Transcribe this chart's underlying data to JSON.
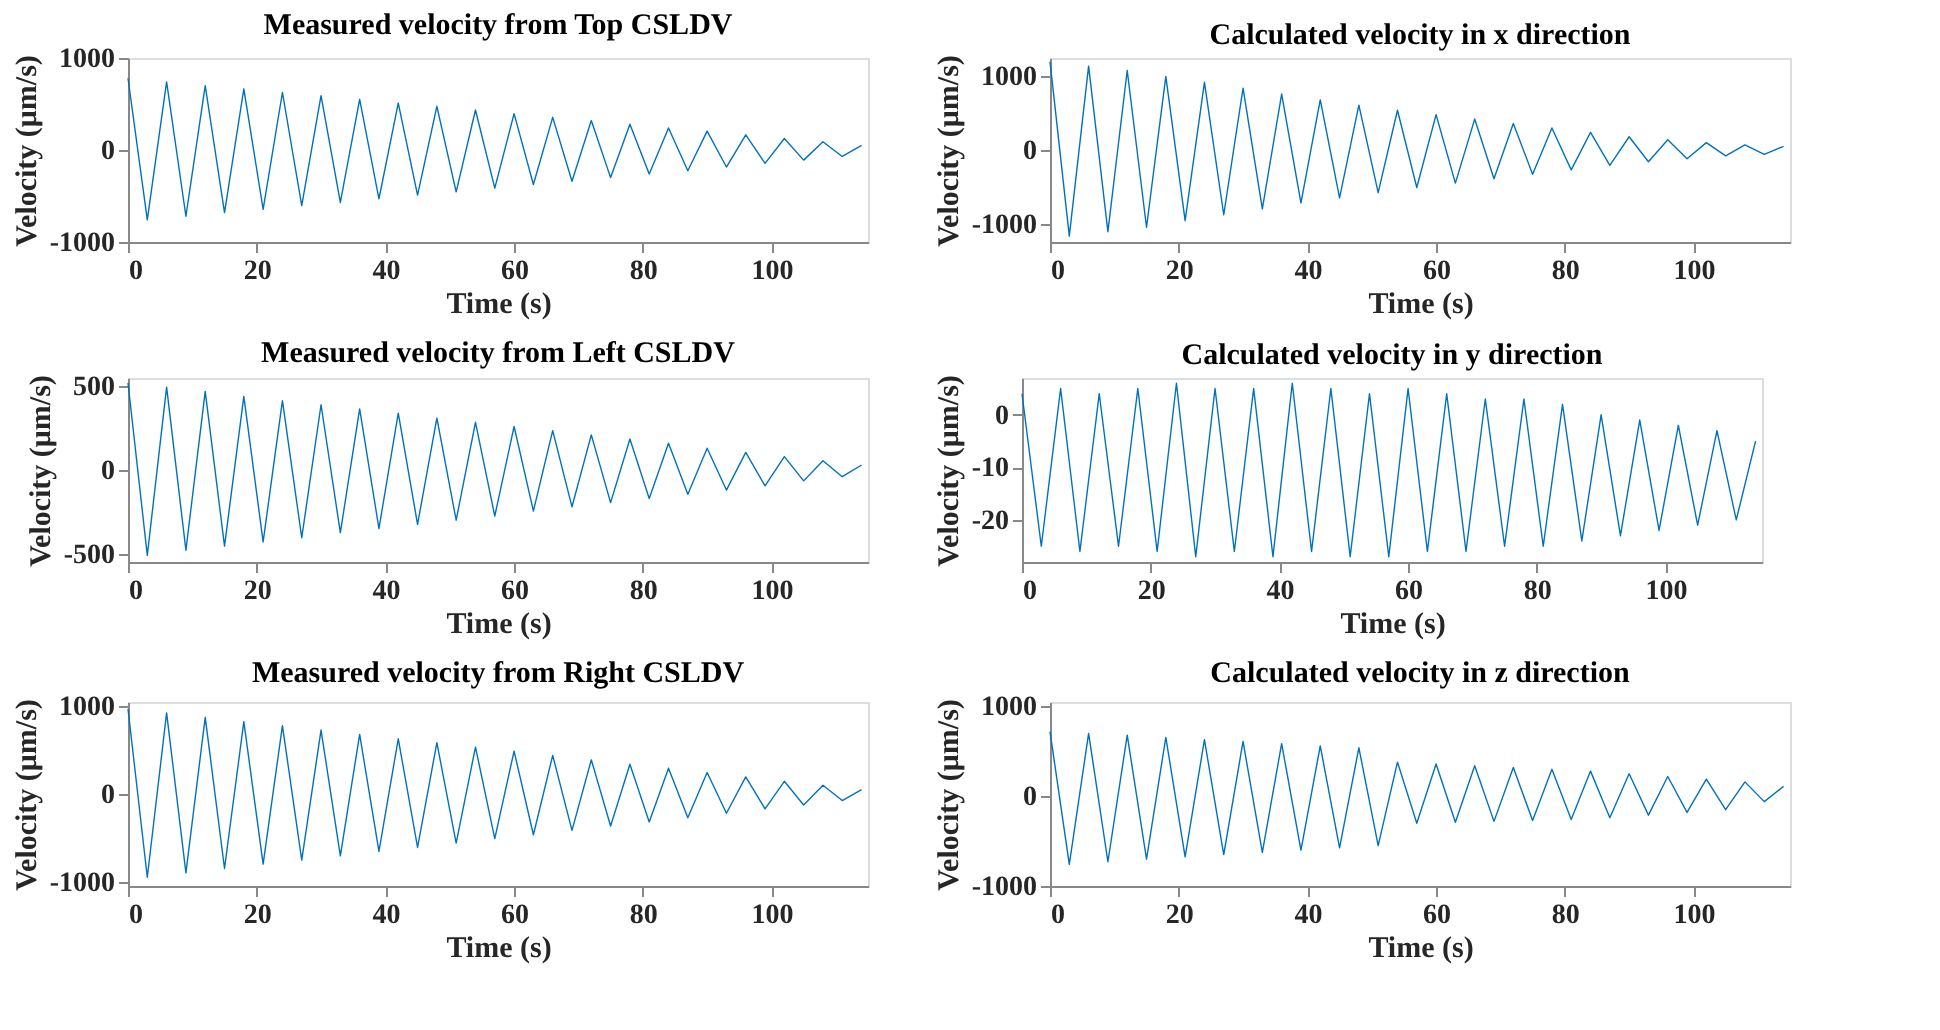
{
  "chart_data": [
    {
      "type": "line",
      "title": "Measured velocity from Top CSLDV",
      "xlabel": "Time (s)",
      "ylabel": "Velocity (μm/s)",
      "xlim": [
        0,
        115
      ],
      "xticks": [
        0,
        20,
        40,
        60,
        80,
        100
      ],
      "ylim": [
        -1000,
        1000
      ],
      "yticks": [
        -1000,
        0,
        1000
      ],
      "x": [
        0,
        3,
        6,
        9,
        12,
        15,
        18,
        21,
        24,
        27,
        30,
        33,
        36,
        39,
        42,
        45,
        48,
        51,
        54,
        57,
        60,
        63,
        66,
        69,
        72,
        75,
        78,
        81,
        84,
        87,
        90,
        93,
        96,
        99,
        102,
        105,
        108,
        111,
        114
      ],
      "series": [
        {
          "color": "#0072bd",
          "values": [
            780,
            -760,
            740,
            -720,
            700,
            -680,
            665,
            -645,
            625,
            -605,
            590,
            -570,
            550,
            -530,
            510,
            -490,
            475,
            -455,
            435,
            -415,
            395,
            -375,
            355,
            -340,
            320,
            -300,
            280,
            -260,
            240,
            -225,
            205,
            -185,
            165,
            -145,
            125,
            -110,
            90,
            -70,
            50
          ]
        }
      ]
    },
    {
      "type": "line",
      "title": "Calculated velocity in x direction",
      "xlabel": "Time (s)",
      "ylabel": "Velocity (μm/s)",
      "xlim": [
        0,
        115
      ],
      "xticks": [
        0,
        20,
        40,
        60,
        80,
        100
      ],
      "ylim": [
        -1250,
        1250
      ],
      "yticks": [
        -1000,
        0,
        1000
      ],
      "x": [
        0,
        3,
        6,
        9,
        12,
        15,
        18,
        21,
        24,
        27,
        30,
        33,
        36,
        39,
        42,
        45,
        48,
        51,
        54,
        57,
        60,
        63,
        66,
        69,
        72,
        75,
        78,
        81,
        84,
        87,
        90,
        93,
        96,
        99,
        102,
        105,
        108,
        111,
        114
      ],
      "series": [
        {
          "color": "#0072bd",
          "values": [
            1200,
            -1170,
            1140,
            -1110,
            1080,
            -1050,
            1000,
            -960,
            920,
            -880,
            840,
            -800,
            760,
            -720,
            680,
            -650,
            610,
            -580,
            540,
            -510,
            480,
            -450,
            420,
            -390,
            360,
            -330,
            300,
            -270,
            240,
            -210,
            180,
            -160,
            140,
            -120,
            100,
            -80,
            70,
            -60,
            50
          ]
        }
      ]
    },
    {
      "type": "line",
      "title": "Measured velocity from Left CSLDV",
      "xlabel": "Time (s)",
      "ylabel": "Velocity (μm/s)",
      "xlim": [
        0,
        115
      ],
      "xticks": [
        0,
        20,
        40,
        60,
        80,
        100
      ],
      "ylim": [
        -550,
        550
      ],
      "yticks": [
        -500,
        0,
        500
      ],
      "x": [
        0,
        3,
        6,
        9,
        12,
        15,
        18,
        21,
        24,
        27,
        30,
        33,
        36,
        39,
        42,
        45,
        48,
        51,
        54,
        57,
        60,
        63,
        66,
        69,
        72,
        75,
        78,
        81,
        84,
        87,
        90,
        93,
        96,
        99,
        102,
        105,
        108,
        111,
        114
      ],
      "series": [
        {
          "color": "#0072bd",
          "values": [
            520,
            -510,
            495,
            -480,
            470,
            -455,
            440,
            -430,
            415,
            -405,
            390,
            -375,
            365,
            -350,
            340,
            -325,
            310,
            -300,
            285,
            -275,
            260,
            -245,
            235,
            -220,
            210,
            -195,
            185,
            -170,
            160,
            -145,
            130,
            -120,
            105,
            -95,
            80,
            -65,
            55,
            -40,
            30
          ]
        }
      ]
    },
    {
      "type": "line",
      "title": "Calculated velocity in y direction",
      "xlabel": "Time (s)",
      "ylabel": "Velocity (μm/s)",
      "xlim": [
        0,
        115
      ],
      "xticks": [
        0,
        20,
        40,
        60,
        80,
        100
      ],
      "ylim": [
        -28,
        7
      ],
      "yticks": [
        -20,
        -10,
        0
      ],
      "x": [
        0,
        3,
        6,
        9,
        12,
        15,
        18,
        21,
        24,
        27,
        30,
        33,
        36,
        39,
        42,
        45,
        48,
        51,
        54,
        57,
        60,
        63,
        66,
        69,
        72,
        75,
        78,
        81,
        84,
        87,
        90,
        93,
        96,
        99,
        102,
        105,
        108,
        111,
        114
      ],
      "series": [
        {
          "color": "#0072bd",
          "values": [
            4,
            -25,
            5,
            -26,
            4,
            -25,
            5,
            -26,
            6,
            -27,
            5,
            -26,
            5,
            -27,
            6,
            -26,
            5,
            -27,
            4,
            -27,
            5,
            -26,
            4,
            -26,
            3,
            -25,
            3,
            -25,
            2,
            -24,
            0,
            -23,
            -1,
            -22,
            -2,
            -21,
            -3,
            -20,
            -5
          ]
        }
      ]
    },
    {
      "type": "line",
      "title": "Measured velocity from Right CSLDV",
      "xlabel": "Time (s)",
      "ylabel": "Velocity (μm/s)",
      "xlim": [
        0,
        115
      ],
      "xticks": [
        0,
        20,
        40,
        60,
        80,
        100
      ],
      "ylim": [
        -1050,
        1050
      ],
      "yticks": [
        -1000,
        0,
        1000
      ],
      "x": [
        0,
        3,
        6,
        9,
        12,
        15,
        18,
        21,
        24,
        27,
        30,
        33,
        36,
        39,
        42,
        45,
        48,
        51,
        54,
        57,
        60,
        63,
        66,
        69,
        72,
        75,
        78,
        81,
        84,
        87,
        90,
        93,
        96,
        99,
        102,
        105,
        108,
        111,
        114
      ],
      "series": [
        {
          "color": "#0072bd",
          "values": [
            970,
            -950,
            925,
            -900,
            875,
            -850,
            825,
            -800,
            780,
            -755,
            730,
            -705,
            680,
            -655,
            630,
            -610,
            585,
            -560,
            535,
            -510,
            490,
            -465,
            440,
            -415,
            390,
            -365,
            340,
            -320,
            295,
            -270,
            245,
            -220,
            195,
            -170,
            145,
            -125,
            100,
            -75,
            50
          ]
        }
      ]
    },
    {
      "type": "line",
      "title": "Calculated velocity in z direction",
      "xlabel": "Time (s)",
      "ylabel": "Velocity (μm/s)",
      "xlim": [
        0,
        115
      ],
      "xticks": [
        0,
        20,
        40,
        60,
        80,
        100
      ],
      "ylim": [
        -1000,
        1050
      ],
      "yticks": [
        -1000,
        0,
        1000
      ],
      "x": [
        0,
        3,
        6,
        9,
        12,
        15,
        18,
        21,
        24,
        27,
        30,
        33,
        36,
        39,
        42,
        45,
        48,
        51,
        54,
        57,
        60,
        63,
        66,
        69,
        72,
        75,
        78,
        81,
        84,
        87,
        90,
        93,
        96,
        99,
        102,
        105,
        108,
        111,
        114
      ],
      "series": [
        {
          "color": "#0072bd",
          "values": [
            720,
            -760,
            700,
            -730,
            680,
            -700,
            655,
            -675,
            630,
            -650,
            610,
            -625,
            585,
            -600,
            560,
            -575,
            540,
            -550,
            380,
            -300,
            360,
            -290,
            340,
            -280,
            320,
            -270,
            300,
            -260,
            280,
            -240,
            250,
            -210,
            220,
            -180,
            190,
            -150,
            160,
            -60,
            110
          ]
        }
      ]
    }
  ]
}
